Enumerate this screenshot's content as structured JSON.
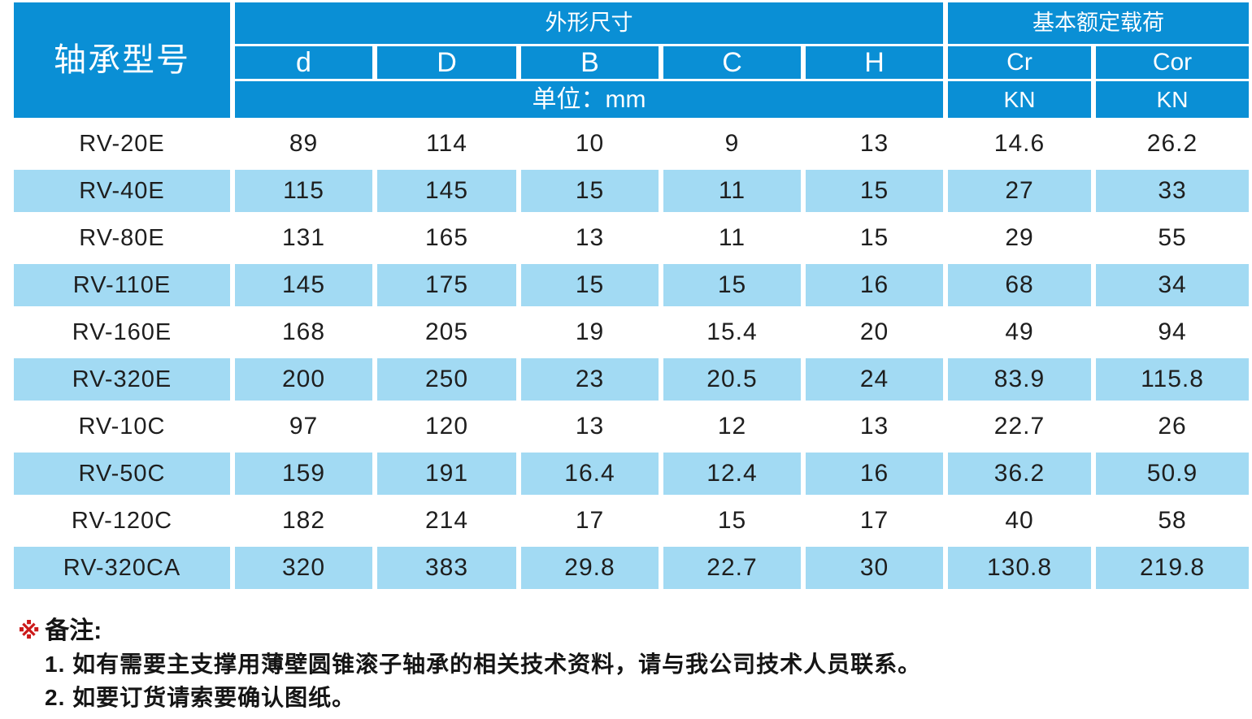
{
  "colors": {
    "header_blue": "#0a8fd5",
    "row_lightblue": "#a2daf3",
    "text_ink": "#1e1e1e",
    "note_marker_red": "#cc1a1a"
  },
  "table": {
    "model_header": "轴承型号",
    "dim_group_header": "外形尺寸",
    "load_group_header": "基本额定载荷",
    "dim_columns": [
      "d",
      "D",
      "B",
      "C",
      "H"
    ],
    "load_columns": [
      "Cr",
      "Cor"
    ],
    "unit_label": "单位：mm",
    "load_units": [
      "KN",
      "KN"
    ],
    "column_keys": [
      "model",
      "d",
      "D",
      "B",
      "C",
      "H",
      "Cr",
      "Cor"
    ],
    "rows": [
      {
        "model": "RV-20E",
        "d": "89",
        "D": "114",
        "B": "10",
        "C": "9",
        "H": "13",
        "Cr": "14.6",
        "Cor": "26.2"
      },
      {
        "model": "RV-40E",
        "d": "115",
        "D": "145",
        "B": "15",
        "C": "11",
        "H": "15",
        "Cr": "27",
        "Cor": "33"
      },
      {
        "model": "RV-80E",
        "d": "131",
        "D": "165",
        "B": "13",
        "C": "11",
        "H": "15",
        "Cr": "29",
        "Cor": "55"
      },
      {
        "model": "RV-110E",
        "d": "145",
        "D": "175",
        "B": "15",
        "C": "15",
        "H": "16",
        "Cr": "68",
        "Cor": "34"
      },
      {
        "model": "RV-160E",
        "d": "168",
        "D": "205",
        "B": "19",
        "C": "15.4",
        "H": "20",
        "Cr": "49",
        "Cor": "94"
      },
      {
        "model": "RV-320E",
        "d": "200",
        "D": "250",
        "B": "23",
        "C": "20.5",
        "H": "24",
        "Cr": "83.9",
        "Cor": "115.8"
      },
      {
        "model": "RV-10C",
        "d": "97",
        "D": "120",
        "B": "13",
        "C": "12",
        "H": "13",
        "Cr": "22.7",
        "Cor": "26"
      },
      {
        "model": "RV-50C",
        "d": "159",
        "D": "191",
        "B": "16.4",
        "C": "12.4",
        "H": "16",
        "Cr": "36.2",
        "Cor": "50.9"
      },
      {
        "model": "RV-120C",
        "d": "182",
        "D": "214",
        "B": "17",
        "C": "15",
        "H": "17",
        "Cr": "40",
        "Cor": "58"
      },
      {
        "model": "RV-320CA",
        "d": "320",
        "D": "383",
        "B": "29.8",
        "C": "22.7",
        "H": "30",
        "Cr": "130.8",
        "Cor": "219.8"
      }
    ]
  },
  "notes": {
    "marker": "※",
    "title": "备注:",
    "items": [
      "1. 如有需要主支撑用薄壁圆锥滚子轴承的相关技术资料，请与我公司技术人员联系。",
      "2. 如要订货请索要确认图纸。"
    ]
  }
}
